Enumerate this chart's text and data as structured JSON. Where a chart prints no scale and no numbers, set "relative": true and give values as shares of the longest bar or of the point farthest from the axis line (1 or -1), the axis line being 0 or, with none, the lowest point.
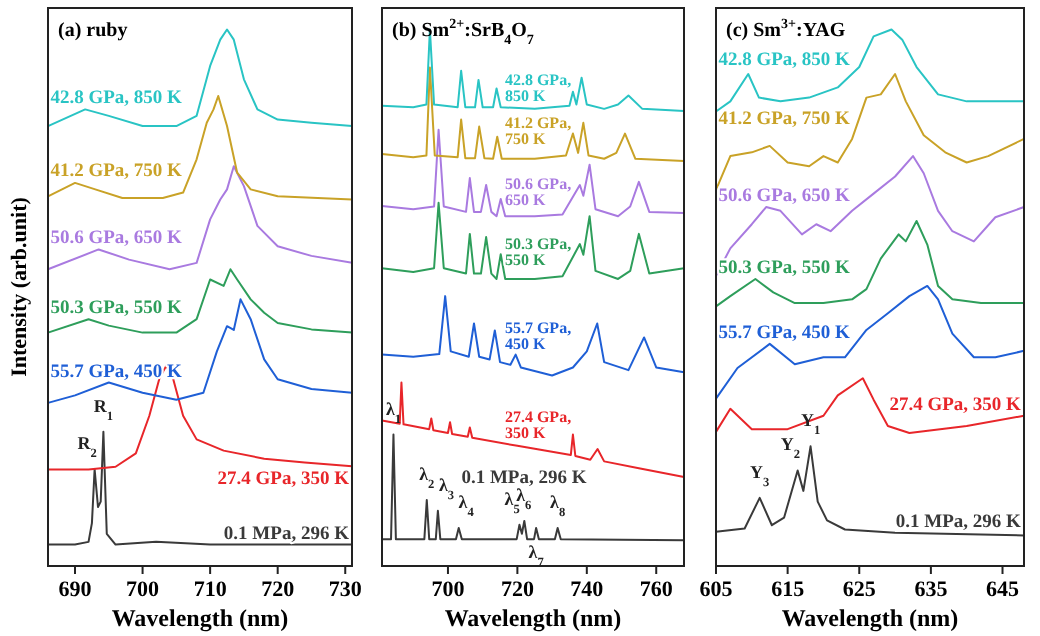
{
  "chart_data": [
    {
      "type": "line",
      "title": "(a) ruby",
      "xlabel": "Wavelength (nm)",
      "ylabel": "Intensity (arb.unit)",
      "relative": true,
      "xlim": [
        686,
        731
      ],
      "xticks": [
        690,
        700,
        710,
        720,
        730
      ],
      "series": [
        {
          "name": "0.1 MPa, 296 K",
          "color": "#3a3a3a",
          "x": [
            686,
            690,
            692,
            692.5,
            692.9,
            693.4,
            693.8,
            694.2,
            694.7,
            696,
            702,
            710,
            720,
            731
          ],
          "values": [
            0.04,
            0.04,
            0.045,
            0.08,
            0.18,
            0.11,
            0.12,
            0.25,
            0.06,
            0.04,
            0.045,
            0.04,
            0.04,
            0.04
          ]
        },
        {
          "name": "27.4 GPa, 350 K",
          "color": "#e8262a",
          "x": [
            686,
            692,
            696,
            699,
            701,
            702.5,
            703.5,
            704.5,
            706,
            708,
            712,
            718,
            724,
            731
          ],
          "values": [
            0.18,
            0.18,
            0.185,
            0.21,
            0.28,
            0.35,
            0.373,
            0.35,
            0.28,
            0.236,
            0.215,
            0.2,
            0.193,
            0.186
          ]
        },
        {
          "name": "55.7 GPa, 450 K",
          "color": "#1f5fd6",
          "x": [
            686,
            690,
            695,
            700,
            705,
            709,
            711,
            712.5,
            713.5,
            714.5,
            716,
            718,
            720,
            725,
            731
          ],
          "values": [
            0.304,
            0.318,
            0.342,
            0.323,
            0.31,
            0.323,
            0.4,
            0.447,
            0.44,
            0.497,
            0.46,
            0.385,
            0.348,
            0.33,
            0.323
          ]
        },
        {
          "name": "50.3 GPa, 550 K",
          "color": "#2e9e5b",
          "x": [
            686,
            692,
            695,
            700,
            705,
            708,
            710,
            712,
            713,
            714,
            716,
            718,
            720,
            725,
            731
          ],
          "values": [
            0.435,
            0.46,
            0.448,
            0.435,
            0.435,
            0.46,
            0.534,
            0.522,
            0.553,
            0.534,
            0.497,
            0.472,
            0.453,
            0.441,
            0.435
          ]
        },
        {
          "name": "50.6 GPa, 650 K",
          "color": "#a97ae0",
          "x": [
            686,
            693.5,
            698,
            704,
            708,
            710,
            711.5,
            712.5,
            713.5,
            715,
            717,
            720,
            725,
            731
          ],
          "values": [
            0.553,
            0.59,
            0.571,
            0.553,
            0.565,
            0.646,
            0.683,
            0.702,
            0.745,
            0.708,
            0.634,
            0.596,
            0.578,
            0.565
          ]
        },
        {
          "name": "41.2 GPa, 750 K",
          "color": "#c9a227",
          "x": [
            686,
            690,
            693,
            697,
            703,
            706,
            708,
            709.5,
            710.5,
            711.2,
            712.5,
            714,
            716,
            720,
            731
          ],
          "values": [
            0.689,
            0.714,
            0.702,
            0.686,
            0.686,
            0.696,
            0.758,
            0.826,
            0.851,
            0.876,
            0.82,
            0.733,
            0.702,
            0.689,
            0.683
          ]
        },
        {
          "name": "42.8 GPa, 850 K",
          "color": "#29c4c4",
          "x": [
            686,
            691.5,
            695,
            700,
            705,
            708,
            710,
            711.5,
            712.5,
            713.5,
            715,
            717,
            720,
            725,
            731
          ],
          "values": [
            0.82,
            0.851,
            0.839,
            0.82,
            0.82,
            0.839,
            0.932,
            0.981,
            1.0,
            0.981,
            0.907,
            0.851,
            0.832,
            0.826,
            0.82
          ]
        }
      ],
      "annotations": [
        {
          "text": "R$_{2}$",
          "x": 692.9,
          "y": 0.18
        },
        {
          "text": "R$_{1}$",
          "x": 694.2,
          "y": 0.25
        }
      ]
    },
    {
      "type": "line",
      "title": "(b) Sm$^{2+}$:SrB$_{4}$O$_{7}$",
      "xlabel": "Wavelength (nm)",
      "relative": true,
      "xlim": [
        681,
        768
      ],
      "xticks": [
        700,
        720,
        740,
        760
      ],
      "series": [
        {
          "name": "0.1 MPa, 296 K",
          "color": "#3a3a3a",
          "x": [
            681,
            683.6,
            684.3,
            685,
            693.2,
            693.9,
            694.6,
            696.5,
            697.1,
            697.8,
            702.3,
            703.1,
            704,
            719.8,
            720.6,
            721.3,
            722,
            722.8,
            724.8,
            725.4,
            726.2,
            730.8,
            731.6,
            732.5,
            768
          ],
          "values": [
            0.05,
            0.05,
            0.245,
            0.05,
            0.05,
            0.123,
            0.05,
            0.05,
            0.103,
            0.05,
            0.05,
            0.071,
            0.05,
            0.05,
            0.077,
            0.06,
            0.084,
            0.05,
            0.05,
            0.071,
            0.05,
            0.05,
            0.071,
            0.05,
            0.048
          ]
        },
        {
          "name": "27.4 GPa, 350 K",
          "color": "#e8262a",
          "x": [
            681,
            686.1,
            686.6,
            687.2,
            694.6,
            695.2,
            695.8,
            700,
            700.6,
            701.2,
            705.7,
            706.3,
            707,
            720,
            735.4,
            736,
            736.7,
            741,
            743.1,
            745,
            755,
            768
          ],
          "values": [
            0.271,
            0.265,
            0.342,
            0.264,
            0.255,
            0.275,
            0.253,
            0.248,
            0.268,
            0.246,
            0.241,
            0.258,
            0.239,
            0.224,
            0.207,
            0.245,
            0.205,
            0.198,
            0.218,
            0.195,
            0.182,
            0.166
          ]
        },
        {
          "name": "55.7 GPa, 450 K",
          "color": "#1f5fd6",
          "x": [
            681,
            690,
            697.5,
            699.2,
            700.8,
            706,
            707.5,
            709,
            712,
            713.5,
            715,
            718,
            719.5,
            721,
            730,
            736,
            740,
            743,
            745,
            752,
            756.5,
            760,
            768
          ],
          "values": [
            0.394,
            0.39,
            0.395,
            0.503,
            0.4,
            0.39,
            0.452,
            0.39,
            0.385,
            0.439,
            0.38,
            0.375,
            0.394,
            0.37,
            0.355,
            0.37,
            0.4,
            0.452,
            0.38,
            0.365,
            0.426,
            0.37,
            0.361
          ]
        },
        {
          "name": "50.3 GPa, 550 K",
          "color": "#2e9e5b",
          "x": [
            681,
            690,
            696,
            697.3,
            698.8,
            705.2,
            706.3,
            707.5,
            709.5,
            711,
            712.5,
            714,
            715.2,
            716.5,
            725,
            733,
            738,
            739,
            740.8,
            742.5,
            749,
            752.5,
            755,
            758,
            768
          ],
          "values": [
            0.555,
            0.548,
            0.555,
            0.677,
            0.555,
            0.545,
            0.619,
            0.545,
            0.545,
            0.613,
            0.545,
            0.535,
            0.581,
            0.535,
            0.535,
            0.54,
            0.6,
            0.58,
            0.652,
            0.55,
            0.535,
            0.55,
            0.619,
            0.545,
            0.555
          ]
        },
        {
          "name": "50.6 GPa, 650 K",
          "color": "#a97ae0",
          "x": [
            681,
            690,
            696,
            697.3,
            698.8,
            705.2,
            706.3,
            707.5,
            709.5,
            711,
            712.5,
            714,
            715.2,
            716.5,
            725,
            733,
            738,
            739,
            740.8,
            742.5,
            749,
            752.5,
            755,
            758,
            768
          ],
          "values": [
            0.671,
            0.665,
            0.67,
            0.813,
            0.67,
            0.66,
            0.723,
            0.66,
            0.66,
            0.71,
            0.66,
            0.652,
            0.684,
            0.652,
            0.652,
            0.655,
            0.71,
            0.69,
            0.748,
            0.665,
            0.652,
            0.67,
            0.716,
            0.66,
            0.658
          ]
        },
        {
          "name": "41.2 GPa, 750 K",
          "color": "#c9a227",
          "x": [
            681,
            690,
            693.8,
            694.8,
            696.2,
            702.8,
            703.8,
            705,
            707.8,
            709,
            710.5,
            713,
            714.2,
            715.5,
            725,
            734,
            736,
            737.5,
            739,
            740.5,
            745,
            748.5,
            751,
            754,
            768
          ],
          "values": [
            0.768,
            0.762,
            0.765,
            0.929,
            0.765,
            0.762,
            0.832,
            0.76,
            0.76,
            0.819,
            0.76,
            0.759,
            0.8,
            0.759,
            0.759,
            0.765,
            0.806,
            0.77,
            0.826,
            0.765,
            0.759,
            0.77,
            0.806,
            0.759,
            0.755
          ]
        },
        {
          "name": "42.8 GPa, 850 K",
          "color": "#29c4c4",
          "x": [
            681,
            690,
            693.8,
            694.8,
            696,
            702.8,
            703.8,
            705,
            707.8,
            708.8,
            710,
            713,
            714,
            715.2,
            725,
            735,
            736,
            737,
            738.5,
            740,
            745,
            749,
            752,
            756,
            768
          ],
          "values": [
            0.858,
            0.855,
            0.86,
            1.0,
            0.86,
            0.855,
            0.923,
            0.855,
            0.855,
            0.906,
            0.855,
            0.855,
            0.89,
            0.855,
            0.852,
            0.858,
            0.884,
            0.86,
            0.91,
            0.86,
            0.852,
            0.86,
            0.877,
            0.852,
            0.848
          ]
        }
      ],
      "annotations": [
        {
          "text": "λ$_{1}$",
          "x": 684.3,
          "y": 0.245
        },
        {
          "text": "λ$_{2}$",
          "x": 693.9,
          "y": 0.123
        },
        {
          "text": "λ$_{3}$",
          "x": 697.1,
          "y": 0.103
        },
        {
          "text": "λ$_{4}$",
          "x": 703.1,
          "y": 0.071
        },
        {
          "text": "λ$_{5}$",
          "x": 720.6,
          "y": 0.077
        },
        {
          "text": "λ$_{6}$",
          "x": 722,
          "y": 0.084
        },
        {
          "text": "λ$_{7}$",
          "x": 725.4,
          "y": 0.071
        },
        {
          "text": "λ$_{8}$",
          "x": 731.6,
          "y": 0.071
        }
      ]
    },
    {
      "type": "line",
      "title": "(c) Sm$^{3+}$:YAG",
      "xlabel": "Wavelength (nm)",
      "relative": true,
      "xlim": [
        605,
        648
      ],
      "xticks": [
        605,
        615,
        625,
        635,
        645
      ],
      "series": [
        {
          "name": "0.1 MPa, 296 K",
          "color": "#3a3a3a",
          "x": [
            605,
            609,
            611.1,
            612.8,
            614.5,
            616.4,
            617.2,
            618.2,
            619.2,
            620.5,
            623,
            630,
            648
          ],
          "values": [
            0.064,
            0.07,
            0.127,
            0.076,
            0.09,
            0.178,
            0.14,
            0.223,
            0.12,
            0.085,
            0.068,
            0.062,
            0.057
          ]
        },
        {
          "name": "27.4 GPa, 350 K",
          "color": "#e8262a",
          "x": [
            605,
            607,
            610,
            615,
            620,
            622,
            625.5,
            627,
            629,
            632,
            640,
            648
          ],
          "values": [
            0.25,
            0.293,
            0.255,
            0.255,
            0.28,
            0.318,
            0.35,
            0.31,
            0.261,
            0.248,
            0.261,
            0.28
          ]
        },
        {
          "name": "55.7 GPa, 450 K",
          "color": "#1f5fd6",
          "x": [
            605,
            608,
            612.5,
            616,
            620,
            623,
            626,
            629,
            632,
            634.5,
            636,
            638,
            641,
            644,
            648
          ],
          "values": [
            0.312,
            0.369,
            0.414,
            0.376,
            0.389,
            0.389,
            0.44,
            0.471,
            0.503,
            0.522,
            0.497,
            0.433,
            0.389,
            0.389,
            0.401
          ]
        },
        {
          "name": "50.3 GPa, 550 K",
          "color": "#2e9e5b",
          "x": [
            605,
            607,
            610.5,
            613,
            616,
            620,
            624,
            626,
            628,
            630.5,
            631.5,
            633,
            634.5,
            636,
            638,
            642,
            648
          ],
          "values": [
            0.484,
            0.503,
            0.535,
            0.51,
            0.49,
            0.49,
            0.497,
            0.516,
            0.573,
            0.618,
            0.605,
            0.643,
            0.599,
            0.522,
            0.497,
            0.49,
            0.49
          ]
        },
        {
          "name": "50.6 GPa, 650 K",
          "color": "#a97ae0",
          "x": [
            605,
            607,
            610,
            612,
            614,
            617,
            619,
            621,
            624,
            627,
            630,
            632.5,
            634,
            636,
            638,
            641,
            644,
            648
          ],
          "values": [
            0.541,
            0.592,
            0.637,
            0.669,
            0.662,
            0.618,
            0.637,
            0.624,
            0.662,
            0.694,
            0.726,
            0.764,
            0.732,
            0.662,
            0.624,
            0.605,
            0.65,
            0.669
          ]
        },
        {
          "name": "41.2 GPa, 750 K",
          "color": "#c9a227",
          "x": [
            605,
            607,
            610,
            612.5,
            615,
            618,
            620,
            622,
            624,
            626,
            628,
            630,
            631.5,
            634,
            637,
            640,
            643,
            648
          ],
          "values": [
            0.701,
            0.764,
            0.771,
            0.783,
            0.752,
            0.745,
            0.764,
            0.752,
            0.796,
            0.873,
            0.879,
            0.917,
            0.866,
            0.803,
            0.771,
            0.752,
            0.764,
            0.796
          ]
        },
        {
          "name": "42.8 GPa, 850 K",
          "color": "#29c4c4",
          "x": [
            605,
            607,
            609.5,
            611,
            614,
            618,
            622,
            625,
            627,
            629.5,
            631,
            633,
            636,
            640,
            648
          ],
          "values": [
            0.847,
            0.866,
            0.917,
            0.873,
            0.866,
            0.873,
            0.892,
            0.93,
            0.987,
            1.0,
            0.981,
            0.93,
            0.879,
            0.866,
            0.866
          ]
        }
      ],
      "annotations": [
        {
          "text": "Y$_{3}$",
          "x": 611.1,
          "y": 0.127
        },
        {
          "text": "Y$_{2}$",
          "x": 616.4,
          "y": 0.178
        },
        {
          "text": "Y$_{1}$",
          "x": 618.2,
          "y": 0.223
        }
      ]
    }
  ]
}
